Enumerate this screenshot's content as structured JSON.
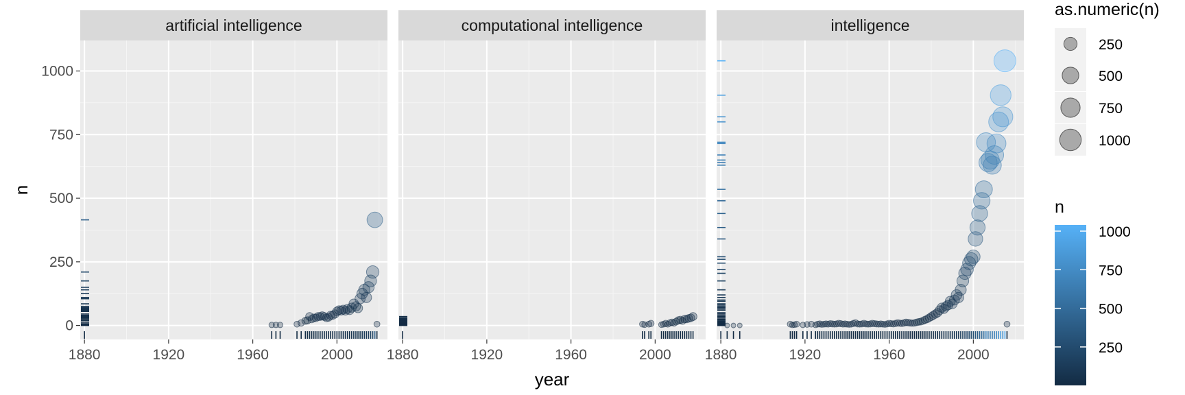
{
  "chart_data": {
    "type": "scatter",
    "xlabel": "year",
    "ylabel": "n",
    "x_ticks": [
      1880,
      1920,
      1960,
      2000
    ],
    "y_ticks": [
      0,
      250,
      500,
      750,
      1000
    ],
    "x_tick_labels": [
      "1880",
      "1920",
      "1960",
      "2000"
    ],
    "y_tick_labels": [
      "0",
      "250",
      "500",
      "750",
      "1000"
    ],
    "xlim": [
      1878,
      2024
    ],
    "ylim": [
      -55,
      1120
    ],
    "grid": true,
    "rug": true,
    "point_alpha": 0.3,
    "panels": [
      {
        "title": "artificial intelligence",
        "points": [
          [
            1880,
            0
          ],
          [
            1969,
            2
          ],
          [
            1971,
            2
          ],
          [
            1973,
            2
          ],
          [
            1981,
            5
          ],
          [
            1983,
            10
          ],
          [
            1985,
            18
          ],
          [
            1986,
            20
          ],
          [
            1987,
            35
          ],
          [
            1988,
            25
          ],
          [
            1989,
            30
          ],
          [
            1990,
            30
          ],
          [
            1991,
            35
          ],
          [
            1992,
            35
          ],
          [
            1993,
            38
          ],
          [
            1994,
            35
          ],
          [
            1995,
            30
          ],
          [
            1996,
            32
          ],
          [
            1997,
            40
          ],
          [
            1998,
            40
          ],
          [
            1999,
            45
          ],
          [
            2000,
            55
          ],
          [
            2001,
            60
          ],
          [
            2002,
            58
          ],
          [
            2003,
            62
          ],
          [
            2004,
            58
          ],
          [
            2005,
            65
          ],
          [
            2006,
            60
          ],
          [
            2007,
            70
          ],
          [
            2008,
            85
          ],
          [
            2009,
            75
          ],
          [
            2010,
            68
          ],
          [
            2011,
            105
          ],
          [
            2012,
            125
          ],
          [
            2013,
            140
          ],
          [
            2014,
            110
          ],
          [
            2015,
            150
          ],
          [
            2016,
            175
          ],
          [
            2017,
            210
          ],
          [
            2018,
            415
          ],
          [
            2019,
            5
          ]
        ]
      },
      {
        "title": "computational intelligence",
        "points": [
          [
            1880,
            0
          ],
          [
            1994,
            5
          ],
          [
            1995,
            3
          ],
          [
            1997,
            5
          ],
          [
            1998,
            8
          ],
          [
            2003,
            3
          ],
          [
            2004,
            5
          ],
          [
            2005,
            8
          ],
          [
            2006,
            5
          ],
          [
            2007,
            10
          ],
          [
            2008,
            12
          ],
          [
            2009,
            10
          ],
          [
            2010,
            15
          ],
          [
            2011,
            20
          ],
          [
            2012,
            22
          ],
          [
            2013,
            18
          ],
          [
            2014,
            25
          ],
          [
            2015,
            25
          ],
          [
            2016,
            28
          ],
          [
            2017,
            30
          ],
          [
            2018,
            35
          ]
        ]
      },
      {
        "title": "intelligence",
        "points": [
          [
            1880,
            0
          ],
          [
            1883,
            0
          ],
          [
            1886,
            0
          ],
          [
            1889,
            0
          ],
          [
            1913,
            5
          ],
          [
            1914,
            2
          ],
          [
            1915,
            3
          ],
          [
            1916,
            5
          ],
          [
            1919,
            2
          ],
          [
            1921,
            4
          ],
          [
            1923,
            5
          ],
          [
            1925,
            2
          ],
          [
            1926,
            5
          ],
          [
            1927,
            6
          ],
          [
            1928,
            4
          ],
          [
            1929,
            5
          ],
          [
            1930,
            6
          ],
          [
            1931,
            5
          ],
          [
            1932,
            7
          ],
          [
            1933,
            6
          ],
          [
            1934,
            5
          ],
          [
            1935,
            6
          ],
          [
            1936,
            8
          ],
          [
            1937,
            7
          ],
          [
            1938,
            5
          ],
          [
            1939,
            6
          ],
          [
            1940,
            5
          ],
          [
            1941,
            4
          ],
          [
            1942,
            5
          ],
          [
            1943,
            8
          ],
          [
            1944,
            10
          ],
          [
            1945,
            6
          ],
          [
            1946,
            5
          ],
          [
            1947,
            6
          ],
          [
            1948,
            8
          ],
          [
            1949,
            6
          ],
          [
            1950,
            5
          ],
          [
            1951,
            6
          ],
          [
            1952,
            8
          ],
          [
            1953,
            7
          ],
          [
            1954,
            6
          ],
          [
            1955,
            5
          ],
          [
            1956,
            6
          ],
          [
            1957,
            5
          ],
          [
            1958,
            4
          ],
          [
            1959,
            6
          ],
          [
            1960,
            8
          ],
          [
            1961,
            7
          ],
          [
            1962,
            6
          ],
          [
            1963,
            8
          ],
          [
            1964,
            10
          ],
          [
            1965,
            9
          ],
          [
            1966,
            8
          ],
          [
            1967,
            10
          ],
          [
            1968,
            12
          ],
          [
            1969,
            11
          ],
          [
            1970,
            10
          ],
          [
            1971,
            9
          ],
          [
            1972,
            10
          ],
          [
            1973,
            12
          ],
          [
            1974,
            14
          ],
          [
            1975,
            15
          ],
          [
            1976,
            18
          ],
          [
            1977,
            22
          ],
          [
            1978,
            25
          ],
          [
            1979,
            30
          ],
          [
            1980,
            35
          ],
          [
            1981,
            40
          ],
          [
            1982,
            45
          ],
          [
            1983,
            50
          ],
          [
            1984,
            60
          ],
          [
            1985,
            70
          ],
          [
            1986,
            65
          ],
          [
            1987,
            75
          ],
          [
            1988,
            80
          ],
          [
            1989,
            95
          ],
          [
            1990,
            85
          ],
          [
            1991,
            100
          ],
          [
            1992,
            120
          ],
          [
            1993,
            110
          ],
          [
            1994,
            140
          ],
          [
            1995,
            175
          ],
          [
            1996,
            205
          ],
          [
            1997,
            220
          ],
          [
            1998,
            245
          ],
          [
            1999,
            260
          ],
          [
            2000,
            270
          ],
          [
            2001,
            340
          ],
          [
            2002,
            385
          ],
          [
            2003,
            440
          ],
          [
            2004,
            490
          ],
          [
            2005,
            535
          ],
          [
            2006,
            720
          ],
          [
            2007,
            640
          ],
          [
            2008,
            650
          ],
          [
            2009,
            630
          ],
          [
            2010,
            670
          ],
          [
            2011,
            715
          ],
          [
            2012,
            800
          ],
          [
            2013,
            905
          ],
          [
            2014,
            820
          ],
          [
            2015,
            1040
          ],
          [
            2016,
            5
          ]
        ]
      }
    ],
    "size_legend": {
      "title": "as.numeric(n)",
      "values": [
        250,
        500,
        750,
        1000
      ],
      "labels": [
        "250",
        "500",
        "750",
        "1000"
      ]
    },
    "color_legend": {
      "title": "n",
      "values": [
        250,
        500,
        750,
        1000
      ],
      "labels": [
        "250",
        "500",
        "750",
        "1000"
      ],
      "low_color": "#132B43",
      "high_color": "#56B1F7"
    }
  }
}
